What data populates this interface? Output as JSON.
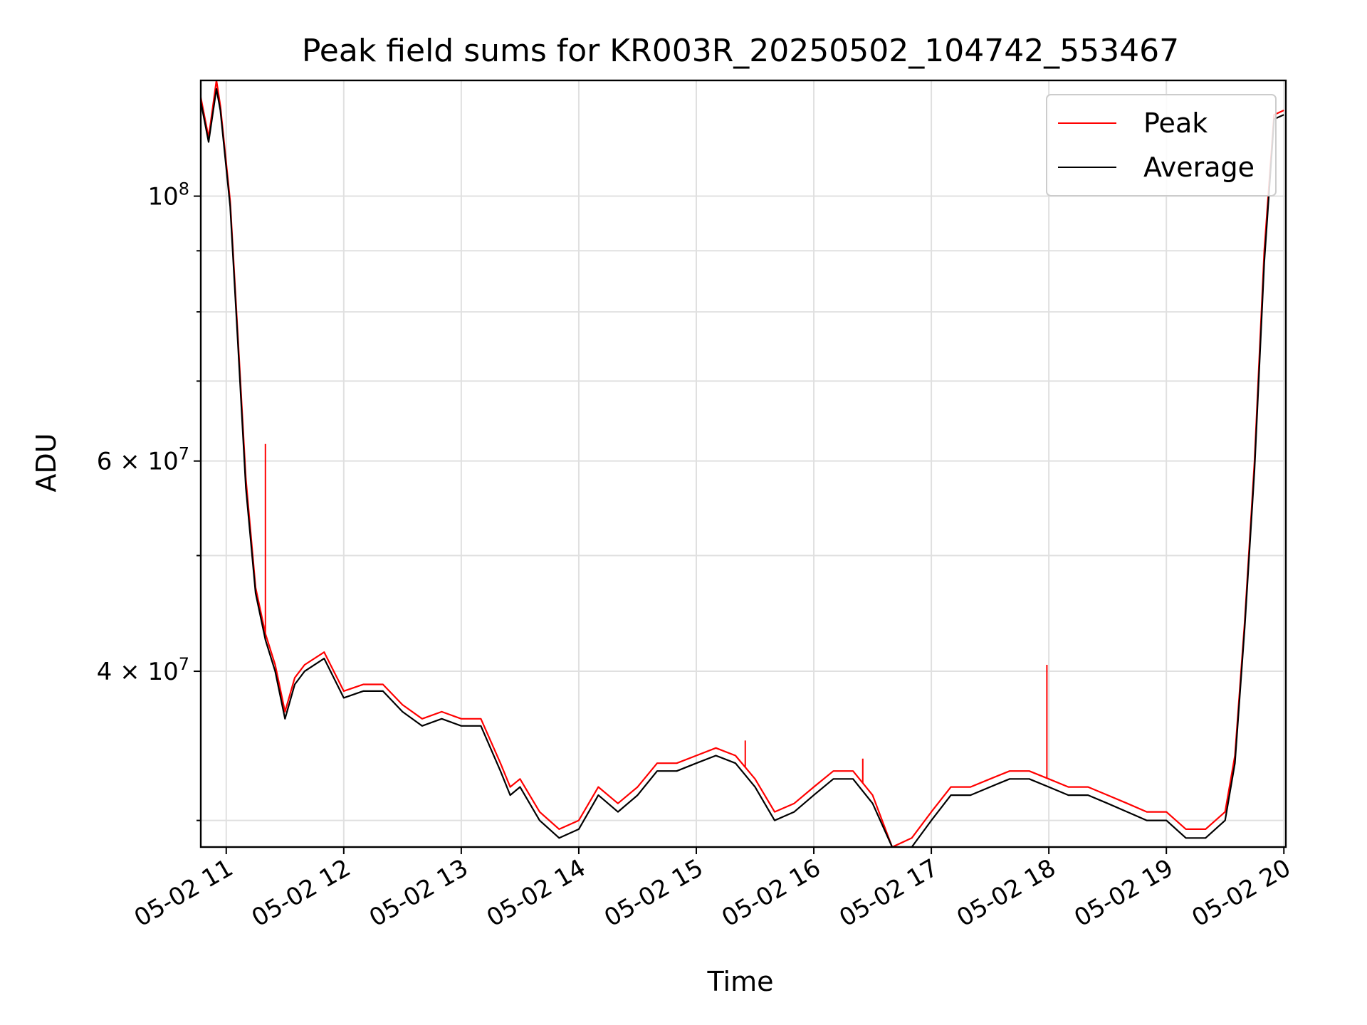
{
  "chart_data": {
    "type": "line",
    "title": "Peak field sums for KR003R_20250502_104742_553467",
    "xlabel": "Time",
    "ylabel": "ADU",
    "y_scale": "log",
    "grid": true,
    "legend_position": "top-right",
    "x_range": [
      "05-02 10:47",
      "05-02 20:01"
    ],
    "ylim": [
      28500000,
      125000000
    ],
    "x_ticks": [
      "05-02 11",
      "05-02 12",
      "05-02 13",
      "05-02 14",
      "05-02 15",
      "05-02 16",
      "05-02 17",
      "05-02 18",
      "05-02 19",
      "05-02 20"
    ],
    "y_ticks": [
      {
        "value": 100000000,
        "label": "10",
        "exp": "8",
        "mantissa": ""
      },
      {
        "value": 60000000,
        "label": "6 × 10",
        "exp": "7",
        "mantissa": "6"
      },
      {
        "value": 40000000,
        "label": "4 × 10",
        "exp": "7",
        "mantissa": "4"
      }
    ],
    "y_minor_ticks": [
      30000000,
      50000000,
      70000000,
      80000000,
      90000000
    ],
    "series": [
      {
        "name": "Peak",
        "color": "#ff0000",
        "x": [
          "05-02 10:47",
          "05-02 10:51",
          "05-02 10:55",
          "05-02 10:57",
          "05-02 11:02",
          "05-02 11:06",
          "05-02 11:10",
          "05-02 11:15",
          "05-02 11:20",
          "05-02 11:25",
          "05-02 11:30",
          "05-02 11:35",
          "05-02 11:40",
          "05-02 11:50",
          "05-02 12:00",
          "05-02 12:10",
          "05-02 12:20",
          "05-02 12:30",
          "05-02 12:40",
          "05-02 12:50",
          "05-02 13:00",
          "05-02 13:10",
          "05-02 13:20",
          "05-02 13:25",
          "05-02 13:30",
          "05-02 13:40",
          "05-02 13:50",
          "05-02 14:00",
          "05-02 14:10",
          "05-02 14:20",
          "05-02 14:30",
          "05-02 14:40",
          "05-02 14:50",
          "05-02 15:00",
          "05-02 15:10",
          "05-02 15:20",
          "05-02 15:30",
          "05-02 15:40",
          "05-02 15:50",
          "05-02 16:00",
          "05-02 16:10",
          "05-02 16:20",
          "05-02 16:30",
          "05-02 16:40",
          "05-02 16:50",
          "05-02 17:00",
          "05-02 17:10",
          "05-02 17:20",
          "05-02 17:30",
          "05-02 17:40",
          "05-02 17:50",
          "05-02 18:00",
          "05-02 18:10",
          "05-02 18:20",
          "05-02 18:30",
          "05-02 18:40",
          "05-02 18:50",
          "05-02 19:00",
          "05-02 19:10",
          "05-02 19:20",
          "05-02 19:30",
          "05-02 19:35",
          "05-02 19:40",
          "05-02 19:45",
          "05-02 19:50",
          "05-02 19:55",
          "05-02 20:00"
        ],
        "values": [
          121000000,
          112000000,
          125000000,
          119000000,
          99000000,
          76000000,
          58000000,
          47000000,
          43000000,
          40500000,
          37000000,
          39500000,
          40500000,
          41500000,
          38500000,
          39000000,
          39000000,
          37500000,
          36500000,
          37000000,
          36500000,
          36500000,
          33500000,
          32000000,
          32500000,
          30500000,
          29500000,
          30000000,
          32000000,
          31000000,
          32000000,
          33500000,
          33500000,
          34000000,
          34500000,
          34000000,
          32500000,
          30500000,
          31000000,
          32000000,
          33000000,
          33000000,
          31500000,
          28500000,
          29000000,
          30500000,
          32000000,
          32000000,
          32500000,
          33000000,
          33000000,
          32500000,
          32000000,
          32000000,
          31500000,
          31000000,
          30500000,
          30500000,
          29500000,
          29500000,
          30500000,
          34000000,
          44000000,
          60000000,
          90000000,
          117000000,
          118000000
        ],
        "spikes": [
          {
            "x": "05-02 11:20",
            "value": 62000000
          },
          {
            "x": "05-02 17:59",
            "value": 40500000
          },
          {
            "x": "05-02 15:25",
            "value": 35000000
          },
          {
            "x": "05-02 16:25",
            "value": 33800000
          }
        ]
      },
      {
        "name": "Average",
        "color": "#000000",
        "x": [
          "05-02 10:47",
          "05-02 10:51",
          "05-02 10:55",
          "05-02 10:57",
          "05-02 11:02",
          "05-02 11:06",
          "05-02 11:10",
          "05-02 11:15",
          "05-02 11:20",
          "05-02 11:25",
          "05-02 11:30",
          "05-02 11:35",
          "05-02 11:40",
          "05-02 11:50",
          "05-02 12:00",
          "05-02 12:10",
          "05-02 12:20",
          "05-02 12:30",
          "05-02 12:40",
          "05-02 12:50",
          "05-02 13:00",
          "05-02 13:10",
          "05-02 13:20",
          "05-02 13:25",
          "05-02 13:30",
          "05-02 13:40",
          "05-02 13:50",
          "05-02 14:00",
          "05-02 14:10",
          "05-02 14:20",
          "05-02 14:30",
          "05-02 14:40",
          "05-02 14:50",
          "05-02 15:00",
          "05-02 15:10",
          "05-02 15:20",
          "05-02 15:30",
          "05-02 15:40",
          "05-02 15:50",
          "05-02 16:00",
          "05-02 16:10",
          "05-02 16:20",
          "05-02 16:30",
          "05-02 16:40",
          "05-02 16:50",
          "05-02 17:00",
          "05-02 17:10",
          "05-02 17:20",
          "05-02 17:30",
          "05-02 17:40",
          "05-02 17:50",
          "05-02 18:00",
          "05-02 18:10",
          "05-02 18:20",
          "05-02 18:30",
          "05-02 18:40",
          "05-02 18:50",
          "05-02 19:00",
          "05-02 19:10",
          "05-02 19:20",
          "05-02 19:30",
          "05-02 19:35",
          "05-02 19:40",
          "05-02 19:45",
          "05-02 19:50",
          "05-02 19:55",
          "05-02 20:00"
        ],
        "values": [
          120000000,
          111000000,
          123000000,
          118000000,
          98000000,
          75000000,
          57000000,
          46500000,
          42500000,
          40000000,
          36500000,
          39000000,
          40000000,
          41000000,
          38000000,
          38500000,
          38500000,
          37000000,
          36000000,
          36500000,
          36000000,
          36000000,
          33000000,
          31500000,
          32000000,
          30000000,
          29000000,
          29500000,
          31500000,
          30500000,
          31500000,
          33000000,
          33000000,
          33500000,
          34000000,
          33500000,
          32000000,
          30000000,
          30500000,
          31500000,
          32500000,
          32500000,
          31000000,
          28500000,
          28500000,
          30000000,
          31500000,
          31500000,
          32000000,
          32500000,
          32500000,
          32000000,
          31500000,
          31500000,
          31000000,
          30500000,
          30000000,
          30000000,
          29000000,
          29000000,
          30000000,
          33500000,
          43500000,
          59000000,
          88000000,
          116000000,
          117000000
        ]
      }
    ]
  }
}
